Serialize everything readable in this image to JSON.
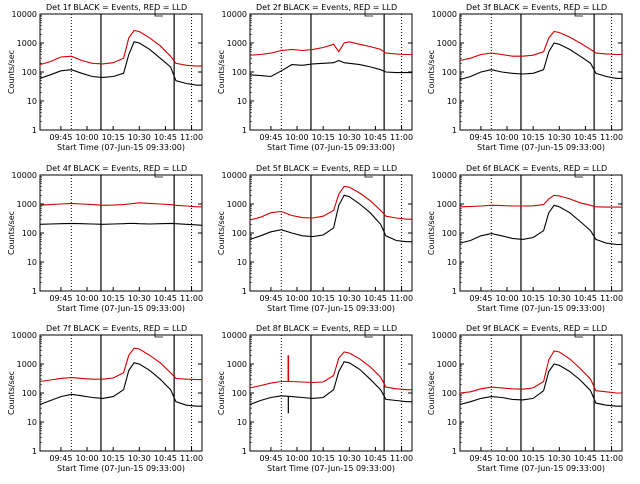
{
  "figure": {
    "ylabel": "Counts/sec",
    "xlabel": "Start Time (07-Jun-15 09:33:00)",
    "colors": {
      "events": "#000000",
      "lld": "#d40000",
      "axes": "#000000"
    },
    "yticks": [
      "1",
      "10",
      "100",
      "1000",
      "10000"
    ],
    "xticks": [
      "09:45",
      "10:00",
      "10:15",
      "10:30",
      "10:45",
      "11:00"
    ]
  },
  "chart_data": [
    {
      "type": "line",
      "title": "Det 1f BLACK = Events, RED = LLD",
      "xlabel": "Start Time (07-Jun-15 09:33:00)",
      "ylabel": "Counts/sec",
      "yscale": "log",
      "ylim": [
        1,
        10000
      ],
      "x": [
        "09:33",
        "09:39",
        "09:45",
        "09:51",
        "09:57",
        "10:03",
        "10:09",
        "10:15",
        "10:21",
        "10:24",
        "10:27",
        "10:30",
        "10:36",
        "10:42",
        "10:48",
        "10:51",
        "10:57",
        "11:03",
        "11:06"
      ],
      "vlines_solid": [
        "10:08",
        "10:50"
      ],
      "vlines_dotted": [
        "09:51",
        "11:00"
      ],
      "series": [
        {
          "name": "Events",
          "values": [
            60,
            80,
            110,
            120,
            90,
            70,
            65,
            70,
            90,
            400,
            1100,
            1000,
            600,
            300,
            150,
            50,
            40,
            35,
            35
          ]
        },
        {
          "name": "LLD",
          "values": [
            180,
            230,
            330,
            350,
            250,
            200,
            190,
            210,
            300,
            1500,
            2700,
            2500,
            1500,
            800,
            350,
            200,
            170,
            160,
            160
          ]
        }
      ]
    },
    {
      "type": "line",
      "title": "Det 2f BLACK = Events, RED = LLD",
      "xlabel": "Start Time (07-Jun-15 09:33:00)",
      "ylabel": "Counts/sec",
      "yscale": "log",
      "ylim": [
        1,
        10000
      ],
      "x": [
        "09:33",
        "09:39",
        "09:45",
        "09:51",
        "09:57",
        "10:03",
        "10:09",
        "10:15",
        "10:21",
        "10:24",
        "10:27",
        "10:30",
        "10:36",
        "10:42",
        "10:48",
        "10:51",
        "10:57",
        "11:03",
        "11:06"
      ],
      "vlines_solid": [
        "10:08",
        "10:50"
      ],
      "vlines_dotted": [
        "09:51",
        "11:00"
      ],
      "series": [
        {
          "name": "Events",
          "values": [
            80,
            75,
            70,
            110,
            180,
            170,
            190,
            200,
            210,
            250,
            210,
            200,
            180,
            150,
            120,
            100,
            95,
            95,
            95
          ]
        },
        {
          "name": "LLD",
          "values": [
            380,
            400,
            450,
            550,
            600,
            550,
            600,
            700,
            900,
            500,
            1000,
            1100,
            900,
            750,
            600,
            450,
            420,
            400,
            400
          ]
        }
      ]
    },
    {
      "type": "line",
      "title": "Det 3f BLACK = Events, RED = LLD",
      "xlabel": "Start Time (07-Jun-15 09:33:00)",
      "ylabel": "Counts/sec",
      "yscale": "log",
      "ylim": [
        1,
        10000
      ],
      "x": [
        "09:33",
        "09:39",
        "09:45",
        "09:51",
        "09:57",
        "10:03",
        "10:09",
        "10:15",
        "10:21",
        "10:24",
        "10:27",
        "10:30",
        "10:36",
        "10:42",
        "10:48",
        "10:51",
        "10:57",
        "11:03",
        "11:06"
      ],
      "vlines_solid": [
        "10:08",
        "10:50"
      ],
      "vlines_dotted": [
        "09:51",
        "11:00"
      ],
      "series": [
        {
          "name": "Events",
          "values": [
            55,
            70,
            100,
            120,
            100,
            90,
            85,
            90,
            120,
            500,
            1000,
            900,
            600,
            350,
            200,
            90,
            70,
            60,
            60
          ]
        },
        {
          "name": "LLD",
          "values": [
            250,
            300,
            400,
            450,
            400,
            350,
            350,
            380,
            500,
            1500,
            2500,
            2300,
            1600,
            1000,
            600,
            450,
            420,
            400,
            400
          ]
        }
      ]
    },
    {
      "type": "line",
      "title": "Det 4f BLACK = Events, RED = LLD",
      "xlabel": "Start Time (07-Jun-15 09:33:00)",
      "ylabel": "Counts/sec",
      "yscale": "log",
      "ylim": [
        1,
        10000
      ],
      "x": [
        "09:33",
        "09:39",
        "09:45",
        "09:51",
        "09:57",
        "10:03",
        "10:09",
        "10:15",
        "10:21",
        "10:24",
        "10:27",
        "10:30",
        "10:36",
        "10:42",
        "10:48",
        "10:51",
        "10:57",
        "11:03",
        "11:06"
      ],
      "vlines_solid": [
        "10:08",
        "10:50"
      ],
      "vlines_dotted": [
        "09:51",
        "11:00"
      ],
      "series": [
        {
          "name": "Events",
          "values": [
            200,
            205,
            210,
            215,
            210,
            205,
            200,
            205,
            210,
            215,
            215,
            210,
            205,
            210,
            215,
            210,
            200,
            190,
            185
          ]
        },
        {
          "name": "LLD",
          "values": [
            900,
            950,
            1000,
            1050,
            1000,
            950,
            900,
            920,
            950,
            1000,
            1050,
            1100,
            1050,
            1000,
            950,
            900,
            850,
            800,
            800
          ]
        }
      ]
    },
    {
      "type": "line",
      "title": "Det 5f BLACK = Events, RED = LLD",
      "xlabel": "Start Time (07-Jun-15 09:33:00)",
      "ylabel": "Counts/sec",
      "yscale": "log",
      "ylim": [
        1,
        10000
      ],
      "x": [
        "09:33",
        "09:39",
        "09:45",
        "09:51",
        "09:57",
        "10:03",
        "10:09",
        "10:15",
        "10:21",
        "10:24",
        "10:27",
        "10:30",
        "10:36",
        "10:42",
        "10:48",
        "10:51",
        "10:57",
        "11:03",
        "11:06"
      ],
      "vlines_solid": [
        "10:08",
        "10:50"
      ],
      "vlines_dotted": [
        "09:51",
        "11:00"
      ],
      "series": [
        {
          "name": "Events",
          "values": [
            60,
            80,
            110,
            130,
            100,
            80,
            75,
            85,
            150,
            900,
            2000,
            1800,
            1000,
            500,
            200,
            80,
            55,
            50,
            50
          ]
        },
        {
          "name": "LLD",
          "values": [
            280,
            350,
            500,
            550,
            400,
            340,
            330,
            380,
            600,
            2200,
            4000,
            3800,
            2400,
            1300,
            600,
            380,
            330,
            300,
            300
          ]
        }
      ]
    },
    {
      "type": "line",
      "title": "Det 6f BLACK = Events, RED = LLD",
      "xlabel": "Start Time (07-Jun-15 09:33:00)",
      "ylabel": "Counts/sec",
      "yscale": "log",
      "ylim": [
        1,
        10000
      ],
      "x": [
        "09:33",
        "09:39",
        "09:45",
        "09:51",
        "09:57",
        "10:03",
        "10:09",
        "10:15",
        "10:21",
        "10:24",
        "10:27",
        "10:30",
        "10:36",
        "10:42",
        "10:48",
        "10:51",
        "10:57",
        "11:03",
        "11:06"
      ],
      "vlines_solid": [
        "10:08",
        "10:50"
      ],
      "vlines_dotted": [
        "09:51",
        "11:00"
      ],
      "series": [
        {
          "name": "Events",
          "values": [
            45,
            55,
            80,
            95,
            80,
            65,
            60,
            70,
            120,
            500,
            900,
            800,
            500,
            250,
            120,
            60,
            45,
            40,
            40
          ]
        },
        {
          "name": "LLD",
          "values": [
            800,
            820,
            850,
            900,
            880,
            850,
            850,
            870,
            950,
            1500,
            2000,
            1900,
            1500,
            1100,
            900,
            800,
            780,
            780,
            780
          ]
        }
      ]
    },
    {
      "type": "line",
      "title": "Det 7f BLACK = Events, RED = LLD",
      "xlabel": "Start Time (07-Jun-15 09:33:00)",
      "ylabel": "Counts/sec",
      "yscale": "log",
      "ylim": [
        1,
        10000
      ],
      "x": [
        "09:33",
        "09:39",
        "09:45",
        "09:51",
        "09:57",
        "10:03",
        "10:09",
        "10:15",
        "10:21",
        "10:24",
        "10:27",
        "10:30",
        "10:36",
        "10:42",
        "10:48",
        "10:51",
        "10:57",
        "11:03",
        "11:06"
      ],
      "vlines_solid": [
        "10:08",
        "10:50"
      ],
      "vlines_dotted": [
        "09:51",
        "11:00"
      ],
      "series": [
        {
          "name": "Events",
          "values": [
            40,
            55,
            75,
            90,
            80,
            70,
            65,
            75,
            130,
            600,
            1100,
            1000,
            600,
            300,
            130,
            50,
            38,
            35,
            35
          ]
        },
        {
          "name": "LLD",
          "values": [
            250,
            280,
            320,
            340,
            320,
            300,
            300,
            330,
            500,
            2000,
            3500,
            3300,
            2000,
            1100,
            500,
            320,
            300,
            290,
            290
          ]
        }
      ]
    },
    {
      "type": "line",
      "title": "Det 8f BLACK = Events, RED = LLD",
      "xlabel": "Start Time (07-Jun-15 09:33:00)",
      "ylabel": "Counts/sec",
      "yscale": "log",
      "ylim": [
        1,
        10000
      ],
      "x": [
        "09:33",
        "09:39",
        "09:45",
        "09:51",
        "09:57",
        "10:03",
        "10:09",
        "10:15",
        "10:21",
        "10:24",
        "10:27",
        "10:30",
        "10:36",
        "10:42",
        "10:48",
        "10:51",
        "10:57",
        "11:03",
        "11:06"
      ],
      "vlines_solid": [
        "10:08",
        "10:50"
      ],
      "vlines_dotted": [
        "09:51",
        "11:00"
      ],
      "series": [
        {
          "name": "Events",
          "values": [
            40,
            55,
            70,
            80,
            75,
            70,
            65,
            70,
            130,
            550,
            1200,
            1100,
            650,
            300,
            130,
            60,
            55,
            50,
            50
          ]
        },
        {
          "name": "LLD",
          "values": [
            150,
            180,
            220,
            250,
            250,
            240,
            230,
            240,
            400,
            1600,
            2600,
            2400,
            1500,
            800,
            350,
            160,
            140,
            130,
            130
          ]
        }
      ],
      "annotations": [
        "Narrow spike near 09:55: LLD ~2000, Events ~20 dip"
      ]
    },
    {
      "type": "line",
      "title": "Det 9f BLACK = Events, RED = LLD",
      "xlabel": "Start Time (07-Jun-15 09:33:00)",
      "ylabel": "Counts/sec",
      "yscale": "log",
      "ylim": [
        1,
        10000
      ],
      "x": [
        "09:33",
        "09:39",
        "09:45",
        "09:51",
        "09:57",
        "10:03",
        "10:09",
        "10:15",
        "10:21",
        "10:24",
        "10:27",
        "10:30",
        "10:36",
        "10:42",
        "10:48",
        "10:51",
        "10:57",
        "11:03",
        "11:06"
      ],
      "vlines_solid": [
        "10:08",
        "10:50"
      ],
      "vlines_dotted": [
        "09:51",
        "11:00"
      ],
      "series": [
        {
          "name": "Events",
          "values": [
            40,
            50,
            65,
            75,
            70,
            60,
            58,
            65,
            120,
            550,
            1000,
            900,
            550,
            280,
            120,
            45,
            38,
            35,
            35
          ]
        },
        {
          "name": "LLD",
          "values": [
            100,
            110,
            140,
            160,
            150,
            140,
            135,
            150,
            250,
            1400,
            2800,
            2600,
            1500,
            700,
            300,
            120,
            110,
            100,
            100
          ]
        }
      ]
    }
  ]
}
